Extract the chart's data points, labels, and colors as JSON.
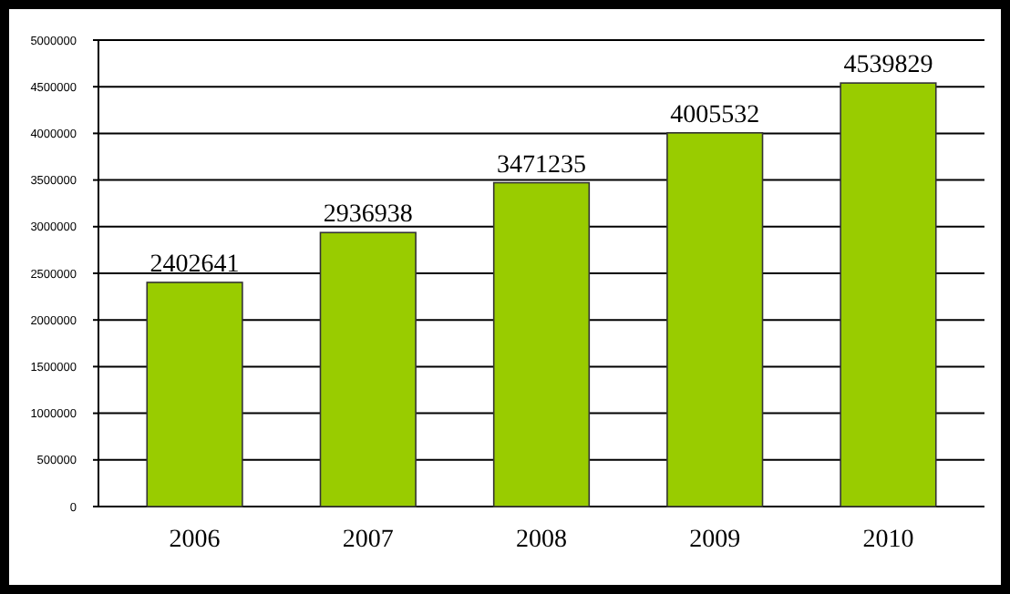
{
  "chart_data": {
    "type": "bar",
    "categories": [
      "2006",
      "2007",
      "2008",
      "2009",
      "2010"
    ],
    "values": [
      2402641,
      2936938,
      3471235,
      4005532,
      4539829
    ],
    "color": "#99cc00",
    "ylim": [
      0,
      5000000
    ],
    "yticks": [
      0,
      500000,
      1000000,
      1500000,
      2000000,
      2500000,
      3000000,
      3500000,
      4000000,
      4500000,
      5000000
    ],
    "grid": "y",
    "data_labels": true
  }
}
